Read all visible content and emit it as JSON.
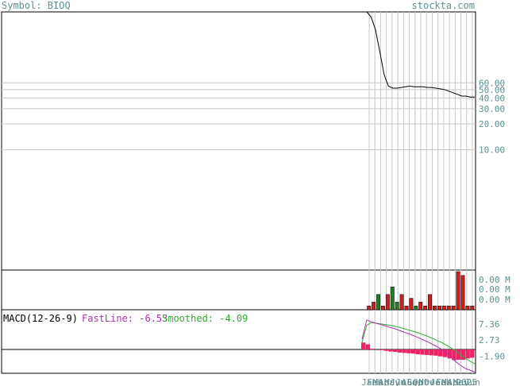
{
  "header": {
    "symbol_text": "Symbol: BIOQ",
    "site": "stockta.com"
  },
  "colors": {
    "axis_text": "#5f8f8f",
    "grid": "#c8c8c8",
    "price_line": "#000000",
    "volume_up": "#1f7f1f",
    "volume_down": "#cc1f1f",
    "macd_fast": "#aa33aa",
    "macd_smooth": "#33aa33",
    "macd_hist": "#ee2266"
  },
  "chart_data": [
    {
      "type": "line",
      "name": "price",
      "y_ticks": [
        "60.00",
        "50.00",
        "40.00",
        "30.00",
        "20.00",
        "10.00"
      ],
      "tick_values": [
        60,
        50,
        40,
        30,
        20,
        10
      ],
      "x_ticks": [
        "Jan",
        "Feb",
        "Mar",
        "Apr",
        "May",
        "Jun",
        "Jul",
        "Aug",
        "Sep",
        "Oct",
        "Nov",
        "Dec",
        "Jan",
        "Feb",
        "Mar",
        "Apr",
        "May",
        "2025",
        "Jun"
      ],
      "values": [
        400,
        350,
        250,
        140,
        75,
        55,
        52,
        52,
        53,
        54,
        55,
        54,
        54,
        54,
        53,
        53,
        52,
        51,
        50,
        48,
        46,
        44,
        42,
        42,
        41,
        41
      ]
    },
    {
      "type": "bar",
      "name": "volume",
      "y_ticks": [
        "0.00 M",
        "0.00 M",
        "0.00 M"
      ],
      "values": [
        1,
        2,
        4,
        1,
        4,
        6,
        2,
        4,
        1,
        3,
        1,
        2,
        1,
        4,
        1,
        1,
        1,
        1,
        1,
        10,
        9,
        1,
        1
      ],
      "up": [
        false,
        false,
        true,
        false,
        false,
        true,
        true,
        false,
        false,
        false,
        true,
        false,
        false,
        false,
        false,
        false,
        false,
        false,
        false,
        false,
        false,
        false,
        false
      ]
    },
    {
      "type": "line",
      "name": "macd",
      "title": "MACD(12-26-9)",
      "fast_label": "FastLine: -6.53",
      "smooth_label": "Smoothed: -4.09",
      "y_ticks": [
        "7.36",
        "2.73",
        "-1.90"
      ],
      "tick_values": [
        7.36,
        2.73,
        -1.9
      ],
      "fast": [
        3.0,
        8.5,
        8.0,
        7.6,
        7.2,
        6.8,
        6.4,
        6.0,
        5.5,
        5.0,
        4.5,
        4.0,
        3.4,
        2.8,
        2.2,
        1.5,
        0.8,
        0.0,
        -1.0,
        -2.2,
        -3.6,
        -4.6,
        -5.5,
        -6.0,
        -6.53
      ],
      "smooth": [
        2.0,
        7.0,
        7.8,
        7.6,
        7.4,
        7.2,
        7.0,
        6.7,
        6.4,
        6.0,
        5.6,
        5.2,
        4.8,
        4.3,
        3.8,
        3.2,
        2.6,
        2.0,
        1.2,
        0.4,
        -0.5,
        -1.6,
        -2.5,
        -3.4,
        -4.09
      ],
      "hist": [
        2.0,
        1.5,
        0.2,
        0.0,
        -0.2,
        -0.4,
        -0.6,
        -0.7,
        -0.9,
        -1.0,
        -1.1,
        -1.2,
        -1.4,
        -1.5,
        -1.6,
        -1.7,
        -1.8,
        -2.0,
        -2.2,
        -2.6,
        -3.1,
        -3.0,
        -3.0,
        -2.6,
        -2.4
      ]
    }
  ]
}
